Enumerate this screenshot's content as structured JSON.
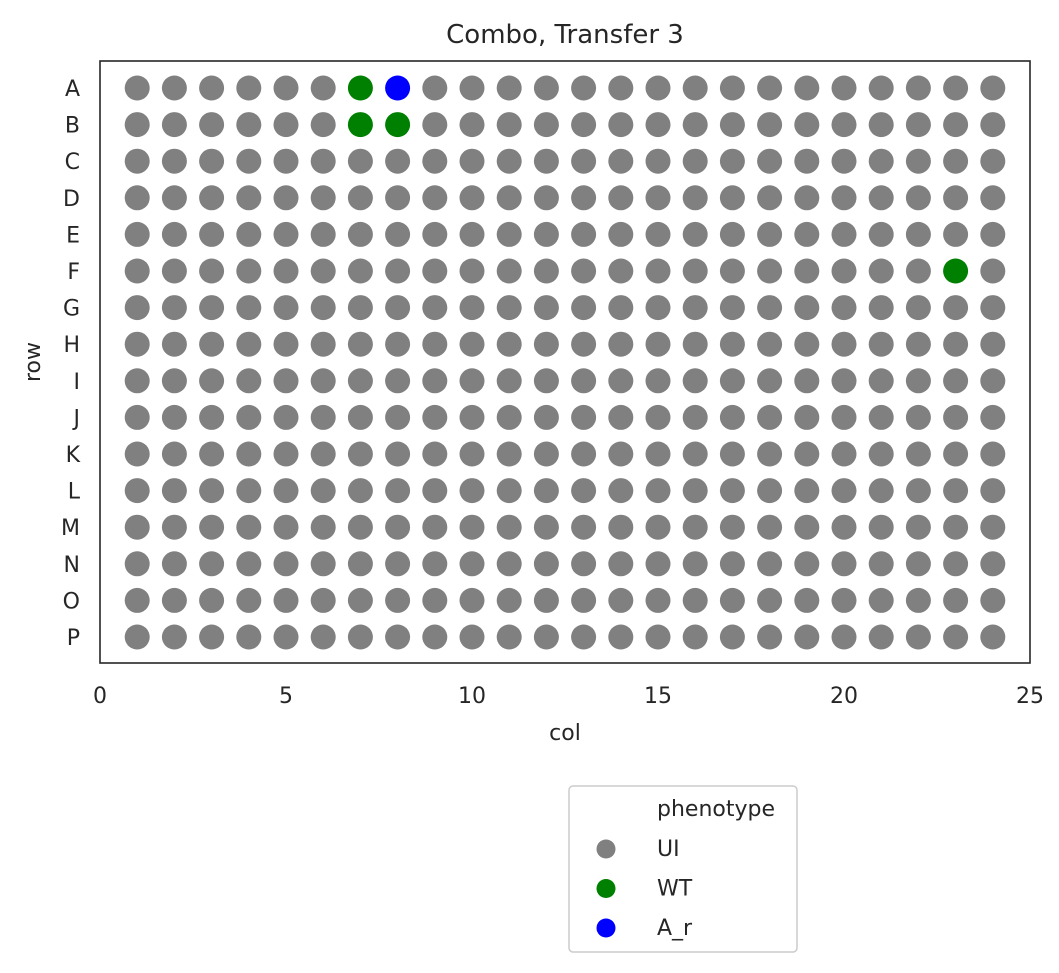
{
  "chart_data": {
    "type": "scatter",
    "title": "Combo, Transfer 3",
    "xlabel": "col",
    "ylabel": "row",
    "xlim": [
      0,
      25
    ],
    "x_ticks": [
      0,
      5,
      10,
      15,
      20,
      25
    ],
    "rows": [
      "A",
      "B",
      "C",
      "D",
      "E",
      "F",
      "G",
      "H",
      "I",
      "J",
      "K",
      "L",
      "M",
      "N",
      "O",
      "P"
    ],
    "columns": [
      1,
      2,
      3,
      4,
      5,
      6,
      7,
      8,
      9,
      10,
      11,
      12,
      13,
      14,
      15,
      16,
      17,
      18,
      19,
      20,
      21,
      22,
      23,
      24
    ],
    "grid": false,
    "default_phenotype": "UI",
    "exceptions": [
      {
        "row": "A",
        "col": 7,
        "phenotype": "WT"
      },
      {
        "row": "A",
        "col": 8,
        "phenotype": "A_r"
      },
      {
        "row": "B",
        "col": 7,
        "phenotype": "WT"
      },
      {
        "row": "B",
        "col": 8,
        "phenotype": "WT"
      },
      {
        "row": "F",
        "col": 23,
        "phenotype": "WT"
      }
    ],
    "series": [
      {
        "name": "UI",
        "color": "#808080"
      },
      {
        "name": "WT",
        "color": "#008000"
      },
      {
        "name": "A_r",
        "color": "#0000ff"
      }
    ],
    "legend": {
      "title": "phenotype",
      "placement": "below"
    }
  }
}
